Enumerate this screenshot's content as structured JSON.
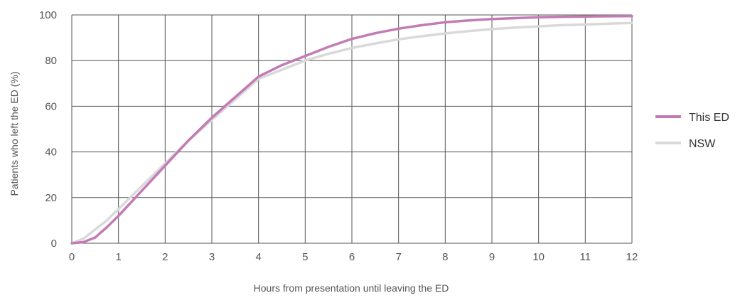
{
  "chart_data": {
    "type": "line",
    "title": "",
    "xlabel": "Hours from presentation until leaving the ED",
    "ylabel": "Patients who left the ED (%)",
    "xlim": [
      0,
      12
    ],
    "ylim": [
      0,
      100
    ],
    "x_ticks": [
      "0",
      "1",
      "2",
      "3",
      "4",
      "5",
      "6",
      "7",
      "8",
      "9",
      "10",
      "11",
      "12"
    ],
    "y_ticks": [
      "0",
      "20",
      "40",
      "60",
      "80",
      "100"
    ],
    "grid": true,
    "legend_position": "right",
    "series": [
      {
        "name": "This ED",
        "color": "#c27bb5",
        "x": [
          0,
          0.25,
          0.5,
          0.75,
          1,
          1.5,
          2,
          2.5,
          3,
          3.5,
          4,
          4.5,
          5,
          5.5,
          6,
          6.5,
          7,
          7.5,
          8,
          8.5,
          9,
          9.5,
          10,
          10.5,
          11,
          11.5,
          12
        ],
        "y": [
          0,
          0.5,
          2.5,
          7,
          12,
          23,
          34,
          45,
          55,
          64,
          73,
          78,
          82,
          86,
          89.5,
          92,
          94,
          95.5,
          96.8,
          97.6,
          98.2,
          98.6,
          99,
          99.2,
          99.3,
          99.4,
          99.5
        ]
      },
      {
        "name": "NSW",
        "color": "#d9d9d9",
        "x": [
          0,
          0.25,
          0.5,
          0.75,
          1,
          1.5,
          2,
          2.5,
          3,
          3.5,
          4,
          4.5,
          5,
          5.5,
          6,
          6.5,
          7,
          7.5,
          8,
          8.5,
          9,
          9.5,
          10,
          10.5,
          11,
          11.5,
          12
        ],
        "y": [
          0,
          2,
          6,
          10,
          15,
          25,
          35,
          45,
          54,
          63,
          72,
          76,
          80,
          83,
          85.5,
          87.5,
          89.3,
          90.7,
          91.9,
          92.9,
          93.8,
          94.5,
          95,
          95.5,
          95.8,
          96.2,
          96.5
        ]
      }
    ]
  }
}
